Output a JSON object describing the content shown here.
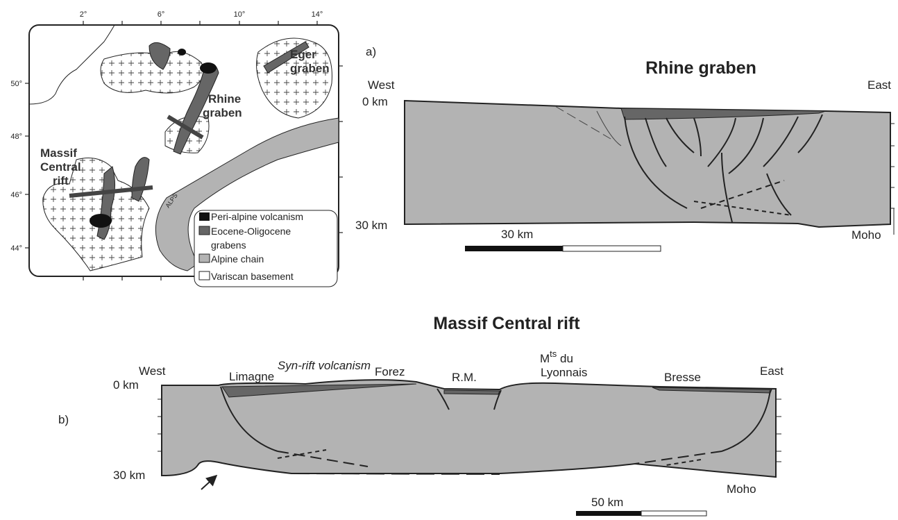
{
  "map": {
    "lon_labels": [
      "2°",
      "6°",
      "10°",
      "14°"
    ],
    "lat_labels": [
      "50°",
      "48°",
      "46°",
      "44°"
    ],
    "labels": {
      "eger": [
        "Eger",
        "graben"
      ],
      "rhine": [
        "Rhine",
        "graben"
      ],
      "massif": [
        "Massif",
        "Central",
        "rift"
      ],
      "alps": "ALPS"
    },
    "legend": [
      "Peri-alpine volcanism",
      "Eocene-Oligocene",
      "grabens",
      "Alpine chain",
      "Variscan basement"
    ]
  },
  "section_a": {
    "panel": "a)",
    "title": "Rhine graben",
    "west": "West",
    "east": "East",
    "top": "0 km",
    "bottom": "30 km",
    "moho": "Moho",
    "scale": "30 km"
  },
  "section_b": {
    "title": "Massif Central rift",
    "panel": "b)",
    "volcanism": "Syn-rift volcanism",
    "west": "West",
    "east": "East",
    "limagne": "Limagne",
    "forez": "Forez",
    "rm": "R.M.",
    "lyonnais": {
      "base": "M",
      "sup": "ts",
      "rest": " du",
      "line2": "Lyonnais"
    },
    "bresse": "Bresse",
    "top": "0 km",
    "bottom": "30 km",
    "moho": "Moho",
    "scale": "50 km"
  }
}
